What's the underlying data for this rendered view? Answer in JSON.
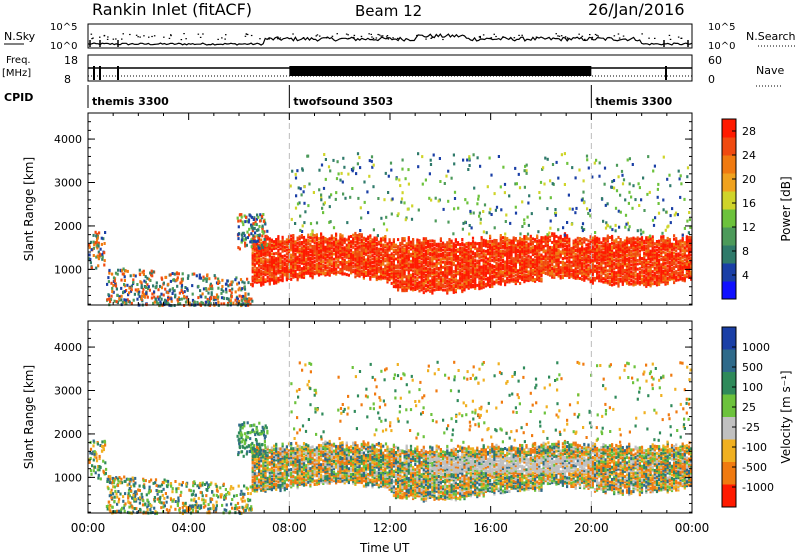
{
  "header": {
    "station": "Rankin Inlet (fitACF)",
    "beam": "Beam 12",
    "date": "26/Jan/2016"
  },
  "summary_panel": {
    "nsky_label": "N.Sky",
    "nsky_ticks": [
      "10^5",
      "10^0"
    ],
    "nsearch_label": "N.Search",
    "nsearch_ticks": [
      "10^5",
      "10^0"
    ],
    "freq_label_1": "Freq.",
    "freq_label_2": "[MHz]",
    "freq_ticks": [
      "18",
      "8"
    ],
    "nave_label": "Nave",
    "nave_ticks": [
      "60",
      "0"
    ],
    "cpid_label": "CPID",
    "cpid_segments": [
      {
        "label": "themis 3300",
        "start_hour": 0,
        "end_hour": 8
      },
      {
        "label": "twofsound 3503",
        "start_hour": 8,
        "end_hour": 20
      },
      {
        "label": "themis 3300",
        "start_hour": 20,
        "end_hour": 24
      }
    ]
  },
  "chart_data": [
    {
      "type": "heatmap",
      "title": "",
      "xlabel": "Time UT",
      "ylabel": "Slant Range [km]",
      "xlim": [
        0,
        24
      ],
      "ylim": [
        180,
        4600
      ],
      "y_ticks": [
        1000,
        2000,
        3000,
        4000
      ],
      "x_tick_labels": [
        "00:00",
        "04:00",
        "08:00",
        "12:00",
        "16:00",
        "20:00",
        "00:00"
      ],
      "x_tick_hours": [
        0,
        4,
        8,
        12,
        16,
        20,
        24
      ],
      "mode_change_hours": [
        8,
        20
      ],
      "colorbar": {
        "label": "Power [dB]",
        "ticks": [
          "4",
          "8",
          "12",
          "16",
          "20",
          "24",
          "28"
        ],
        "colors": [
          "#1010ff",
          "#1a3fa6",
          "#2f7a6a",
          "#4c9a5a",
          "#6cc23c",
          "#cfd42a",
          "#f0a21e",
          "#f07a10",
          "#f04a10",
          "#ff1a00"
        ]
      },
      "echo_bands": [
        {
          "name": "main echo band",
          "start_hour": 6.5,
          "end_hour": 24,
          "range_low_km": 700,
          "range_high_km": 1750,
          "dominant": "28"
        },
        {
          "name": "near-range scatter",
          "start_hour": 0,
          "end_hour": 6.5,
          "range_low_km": 200,
          "range_high_km": 1800,
          "dominant": "12"
        },
        {
          "name": "far-range patches",
          "start_hour": 8,
          "end_hour": 24,
          "range_low_km": 1800,
          "range_high_km": 3700,
          "dominant": "12"
        }
      ]
    },
    {
      "type": "heatmap",
      "title": "",
      "xlabel": "Time UT",
      "ylabel": "Slant Range [km]",
      "xlim": [
        0,
        24
      ],
      "ylim": [
        180,
        4600
      ],
      "y_ticks": [
        1000,
        2000,
        3000,
        4000
      ],
      "x_tick_labels": [
        "00:00",
        "04:00",
        "08:00",
        "12:00",
        "16:00",
        "20:00",
        "00:00"
      ],
      "x_tick_hours": [
        0,
        4,
        8,
        12,
        16,
        20,
        24
      ],
      "mode_change_hours": [
        8,
        20
      ],
      "colorbar": {
        "label": "Velocity  [m s⁻¹]",
        "ticks": [
          "1000",
          "500",
          "100",
          "25",
          "-25",
          "-100",
          "-500",
          "-1000"
        ],
        "colors": [
          "#1a3fa6",
          "#2f6a8a",
          "#2f8a5a",
          "#6cc23c",
          "#c0c0c0",
          "#f0b020",
          "#f07a10",
          "#ff1a00"
        ]
      },
      "echo_bands": [
        {
          "name": "main echo band",
          "start_hour": 6.5,
          "end_hour": 24,
          "range_low_km": 700,
          "range_high_km": 1750,
          "dominant": "-100"
        },
        {
          "name": "near-range scatter",
          "start_hour": 0,
          "end_hour": 6.5,
          "range_low_km": 200,
          "range_high_km": 1800,
          "dominant": "100"
        },
        {
          "name": "far-range patches",
          "start_hour": 8,
          "end_hour": 24,
          "range_low_km": 1800,
          "range_high_km": 3700,
          "dominant": "100"
        }
      ]
    }
  ]
}
